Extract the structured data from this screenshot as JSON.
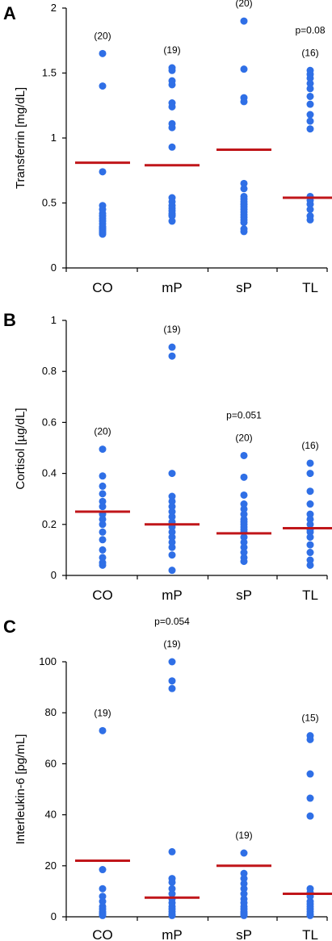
{
  "chart_data": [
    {
      "panel": "A",
      "type": "scatter",
      "ylabel": "Transferrin [mg/dL]",
      "categories": [
        "CO",
        "mP",
        "sP",
        "TL"
      ],
      "ylim": [
        0,
        2
      ],
      "yticks": [
        0,
        0.5,
        1,
        1.5,
        2
      ],
      "ytick_labels": [
        "0",
        "0.5",
        "1",
        "1.5",
        "2"
      ],
      "n_labels": [
        "(20)",
        "(19)",
        "(20)",
        "(16)"
      ],
      "p_label": {
        "category_index": 3,
        "text": "p=0.08"
      },
      "medians": [
        0.81,
        0.79,
        0.91,
        0.54
      ],
      "points": [
        [
          1.65,
          1.4,
          0.74,
          0.48,
          0.45,
          0.42,
          0.4,
          0.38,
          0.36,
          0.34,
          0.32,
          0.31,
          0.3,
          0.29,
          0.28,
          0.27,
          0.26
        ],
        [
          1.54,
          1.52,
          1.44,
          1.41,
          1.27,
          1.24,
          1.11,
          1.08,
          0.93,
          0.54,
          0.51,
          0.48,
          0.46,
          0.44,
          0.42,
          0.41,
          0.4,
          0.36
        ],
        [
          1.9,
          1.53,
          1.31,
          1.28,
          0.65,
          0.61,
          0.55,
          0.53,
          0.51,
          0.49,
          0.47,
          0.45,
          0.43,
          0.41,
          0.39,
          0.37,
          0.35,
          0.3,
          0.28
        ],
        [
          1.52,
          1.49,
          1.46,
          1.42,
          1.38,
          1.32,
          1.26,
          1.18,
          1.13,
          1.07,
          0.55,
          0.52,
          0.49,
          0.45,
          0.4,
          0.37
        ]
      ]
    },
    {
      "panel": "B",
      "type": "scatter",
      "ylabel": "Cortisol [µg/dL]",
      "categories": [
        "CO",
        "mP",
        "sP",
        "TL"
      ],
      "ylim": [
        0,
        1
      ],
      "yticks": [
        0,
        0.2,
        0.4,
        0.6,
        0.8,
        1
      ],
      "ytick_labels": [
        "0",
        "0.2",
        "0.4",
        "0.6",
        "0.8",
        "1"
      ],
      "n_labels": [
        "(20)",
        "(19)",
        "(20)",
        "(16)"
      ],
      "p_label": {
        "category_index": 2,
        "text": "p=0.051"
      },
      "medians": [
        0.25,
        0.2,
        0.165,
        0.185
      ],
      "points": [
        [
          0.495,
          0.39,
          0.35,
          0.32,
          0.29,
          0.27,
          0.24,
          0.22,
          0.2,
          0.17,
          0.14,
          0.1,
          0.07,
          0.05,
          0.04
        ],
        [
          0.895,
          0.86,
          0.4,
          0.31,
          0.29,
          0.27,
          0.25,
          0.23,
          0.21,
          0.2,
          0.19,
          0.17,
          0.15,
          0.13,
          0.11,
          0.08,
          0.02
        ],
        [
          0.47,
          0.385,
          0.315,
          0.28,
          0.26,
          0.24,
          0.22,
          0.21,
          0.2,
          0.19,
          0.18,
          0.17,
          0.15,
          0.13,
          0.11,
          0.09,
          0.07,
          0.055
        ],
        [
          0.44,
          0.4,
          0.33,
          0.28,
          0.24,
          0.22,
          0.2,
          0.18,
          0.17,
          0.15,
          0.12,
          0.09,
          0.06,
          0.04
        ]
      ]
    },
    {
      "panel": "C",
      "type": "scatter",
      "ylabel": "Interleukin-6 [pg/mL]",
      "categories": [
        "CO",
        "mP",
        "sP",
        "TL"
      ],
      "ylim": [
        0,
        100
      ],
      "yticks": [
        0,
        20,
        40,
        60,
        80,
        100
      ],
      "ytick_labels": [
        "0",
        "20",
        "40",
        "60",
        "80",
        "100"
      ],
      "n_labels": [
        "(19)",
        "(19)",
        "(19)",
        "(15)"
      ],
      "p_label": {
        "category_index": 1,
        "text": "p=0.054"
      },
      "medians": [
        22,
        7.5,
        20,
        9
      ],
      "points": [
        [
          73,
          18.5,
          11,
          8,
          6,
          4,
          3,
          2,
          1.5,
          1,
          0.5
        ],
        [
          100,
          92.5,
          89.5,
          25.5,
          15,
          13.5,
          11,
          9,
          7,
          5.5,
          4,
          3,
          2,
          1,
          0.5
        ],
        [
          25,
          17,
          15,
          13,
          11,
          9,
          7,
          5.5,
          4,
          3,
          2,
          1.5,
          1,
          0.5
        ],
        [
          71,
          69.5,
          56,
          46.5,
          39.5,
          11,
          9.5,
          8,
          6,
          5,
          4,
          3,
          2,
          1,
          0.5
        ]
      ]
    }
  ]
}
